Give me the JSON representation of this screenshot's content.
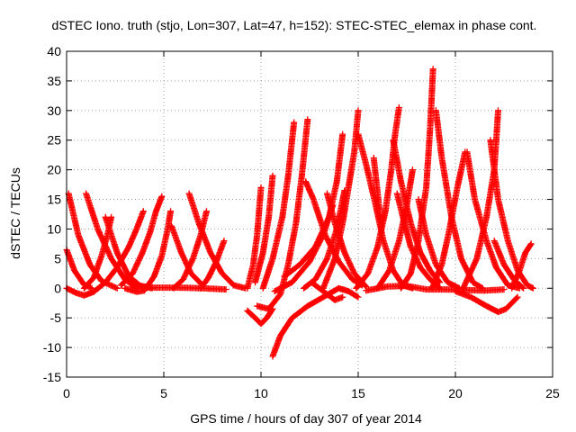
{
  "chart_data": {
    "type": "scatter",
    "title": "dSTEC Iono. truth (stjo, Lon=307, Lat=47, h=152): STEC-STEC_elemax in phase cont.",
    "xlabel": "GPS time / hours of day 307 of year 2014",
    "ylabel": "dSTEC  / TECUs",
    "xlim": [
      0,
      25
    ],
    "ylim": [
      -15,
      40
    ],
    "xticks": [
      "0",
      "5",
      "10",
      "15",
      "20",
      "25"
    ],
    "yticks": [
      "-15",
      "-10",
      "-5",
      "0",
      "5",
      "10",
      "15",
      "20",
      "25",
      "30",
      "35",
      "40"
    ],
    "grid": true,
    "marker": "plus",
    "series_color": "#ff0000",
    "arcs": [
      [
        [
          0.0,
          6.5
        ],
        [
          0.4,
          3.0
        ],
        [
          0.9,
          0.6
        ],
        [
          1.3,
          0.0
        ]
      ],
      [
        [
          0.1,
          16.0
        ],
        [
          0.6,
          9.0
        ],
        [
          1.2,
          4.0
        ],
        [
          1.8,
          1.2
        ],
        [
          2.6,
          0.0
        ]
      ],
      [
        [
          0.0,
          0.0
        ],
        [
          0.5,
          -0.8
        ],
        [
          0.9,
          -1.2
        ],
        [
          1.4,
          -0.6
        ],
        [
          2.0,
          1.0
        ],
        [
          2.6,
          3.5
        ],
        [
          3.2,
          7.0
        ],
        [
          3.6,
          10.0
        ],
        [
          3.95,
          13.0
        ]
      ],
      [
        [
          1.0,
          16.0
        ],
        [
          1.6,
          10.0
        ],
        [
          2.3,
          5.0
        ],
        [
          3.0,
          1.5
        ],
        [
          3.6,
          0.0
        ]
      ],
      [
        [
          0.9,
          0.0
        ],
        [
          1.4,
          1.8
        ],
        [
          1.8,
          5.5
        ],
        [
          2.1,
          9.0
        ],
        [
          2.3,
          12.0
        ]
      ],
      [
        [
          2.0,
          12.0
        ],
        [
          2.6,
          6.0
        ],
        [
          3.2,
          2.0
        ],
        [
          3.8,
          0.4
        ],
        [
          4.4,
          0.0
        ]
      ],
      [
        [
          3.0,
          0.0
        ],
        [
          3.6,
          -0.6
        ],
        [
          4.0,
          -0.4
        ],
        [
          4.5,
          2.0
        ],
        [
          4.9,
          5.5
        ],
        [
          5.2,
          10.0
        ],
        [
          5.35,
          13.0
        ]
      ],
      [
        [
          2.8,
          0.5
        ],
        [
          3.4,
          2.5
        ],
        [
          3.9,
          6.0
        ],
        [
          4.3,
          9.5
        ],
        [
          4.6,
          13.0
        ],
        [
          4.9,
          15.5
        ]
      ],
      [
        [
          3.4,
          0.5
        ],
        [
          4.5,
          0.1
        ],
        [
          5.8,
          0.1
        ],
        [
          7.0,
          0.0
        ],
        [
          8.2,
          -0.2
        ]
      ],
      [
        [
          6.3,
          16.0
        ],
        [
          6.8,
          11.0
        ],
        [
          7.4,
          6.0
        ],
        [
          8.0,
          2.5
        ],
        [
          8.6,
          0.5
        ],
        [
          9.2,
          0.0
        ]
      ],
      [
        [
          5.5,
          0.0
        ],
        [
          6.0,
          1.5
        ],
        [
          6.5,
          5.0
        ],
        [
          6.9,
          9.0
        ],
        [
          7.2,
          13.0
        ]
      ],
      [
        [
          6.9,
          0.0
        ],
        [
          7.3,
          1.8
        ],
        [
          7.7,
          4.5
        ],
        [
          8.1,
          8.0
        ]
      ],
      [
        [
          5.4,
          10.5
        ],
        [
          5.9,
          6.0
        ],
        [
          6.4,
          2.5
        ],
        [
          7.0,
          0.5
        ]
      ],
      [
        [
          9.3,
          -3.8
        ],
        [
          9.7,
          -5.0
        ],
        [
          10.0,
          -6.0
        ],
        [
          10.3,
          -5.0
        ],
        [
          10.6,
          -3.5
        ]
      ],
      [
        [
          9.3,
          0.0
        ],
        [
          9.6,
          4.0
        ],
        [
          9.8,
          9.0
        ],
        [
          10.0,
          17.0
        ]
      ],
      [
        [
          9.7,
          1.0
        ],
        [
          10.1,
          6.0
        ],
        [
          10.4,
          12.0
        ],
        [
          10.6,
          19.0
        ]
      ],
      [
        [
          9.8,
          -3.0
        ],
        [
          10.4,
          -3.5
        ],
        [
          11.0,
          -1.0
        ],
        [
          11.4,
          4.0
        ],
        [
          11.8,
          11.0
        ],
        [
          12.1,
          19.0
        ],
        [
          12.4,
          28.5
        ]
      ],
      [
        [
          10.1,
          0.0
        ],
        [
          10.6,
          5.0
        ],
        [
          11.1,
          12.0
        ],
        [
          11.4,
          19.0
        ],
        [
          11.7,
          28.0
        ]
      ],
      [
        [
          10.6,
          -11.5
        ],
        [
          11.0,
          -8.0
        ],
        [
          11.6,
          -5.0
        ],
        [
          12.4,
          -3.0
        ],
        [
          13.2,
          -1.5
        ],
        [
          14.0,
          0.0
        ],
        [
          14.5,
          -0.5
        ],
        [
          15.0,
          -1.5
        ]
      ],
      [
        [
          10.7,
          -0.5
        ],
        [
          11.6,
          1.0
        ],
        [
          12.5,
          4.5
        ],
        [
          13.2,
          9.0
        ],
        [
          13.7,
          14.0
        ]
      ],
      [
        [
          11.2,
          2.0
        ],
        [
          12.0,
          4.0
        ],
        [
          12.8,
          7.0
        ],
        [
          13.5,
          12.0
        ],
        [
          13.9,
          18.0
        ],
        [
          14.2,
          26.0
        ]
      ],
      [
        [
          12.3,
          18.0
        ],
        [
          12.7,
          15.0
        ],
        [
          13.3,
          9.0
        ],
        [
          14.0,
          4.5
        ],
        [
          14.7,
          1.5
        ],
        [
          15.2,
          0.5
        ]
      ],
      [
        [
          13.2,
          0.0
        ],
        [
          13.8,
          5.0
        ],
        [
          14.2,
          11.0
        ],
        [
          14.5,
          17.0
        ],
        [
          14.8,
          23.0
        ],
        [
          15.0,
          30.0
        ]
      ],
      [
        [
          12.2,
          0.0
        ],
        [
          12.8,
          1.5
        ],
        [
          13.4,
          5.0
        ],
        [
          13.9,
          10.0
        ],
        [
          14.3,
          16.5
        ]
      ],
      [
        [
          13.4,
          16.0
        ],
        [
          13.8,
          11.0
        ],
        [
          14.3,
          6.0
        ],
        [
          14.8,
          2.5
        ],
        [
          15.4,
          0.3
        ]
      ],
      [
        [
          12.6,
          1.0
        ],
        [
          13.2,
          -0.5
        ],
        [
          13.8,
          -2.0
        ],
        [
          14.2,
          -1.5
        ]
      ],
      [
        [
          15.0,
          26.0
        ],
        [
          15.4,
          21.0
        ],
        [
          15.9,
          14.0
        ],
        [
          16.3,
          8.0
        ],
        [
          16.8,
          3.0
        ],
        [
          17.3,
          0.5
        ],
        [
          17.8,
          0.0
        ]
      ],
      [
        [
          15.8,
          22.0
        ],
        [
          16.0,
          16.0
        ],
        [
          16.2,
          10.0
        ]
      ],
      [
        [
          14.9,
          0.0
        ],
        [
          15.5,
          2.5
        ],
        [
          16.0,
          7.0
        ],
        [
          16.4,
          13.0
        ],
        [
          16.7,
          20.0
        ],
        [
          16.9,
          26.0
        ],
        [
          17.1,
          30.5
        ]
      ],
      [
        [
          16.8,
          25.0
        ],
        [
          17.2,
          18.0
        ],
        [
          17.7,
          11.0
        ],
        [
          18.2,
          6.0
        ],
        [
          18.7,
          3.0
        ],
        [
          19.2,
          1.0
        ]
      ],
      [
        [
          15.4,
          -0.4
        ],
        [
          16.5,
          0.3
        ],
        [
          17.5,
          0.4
        ],
        [
          18.5,
          -0.2
        ],
        [
          19.5,
          -0.2
        ],
        [
          20.5,
          -0.3
        ],
        [
          21.5,
          -0.4
        ],
        [
          22.5,
          -0.2
        ]
      ],
      [
        [
          17.2,
          0.0
        ],
        [
          17.7,
          2.5
        ],
        [
          18.1,
          8.0
        ],
        [
          18.5,
          17.0
        ],
        [
          18.7,
          27.0
        ],
        [
          18.85,
          37.0
        ]
      ],
      [
        [
          19.0,
          30.0
        ],
        [
          19.3,
          22.0
        ],
        [
          19.8,
          12.0
        ],
        [
          20.3,
          5.0
        ],
        [
          20.9,
          1.0
        ],
        [
          21.4,
          0.0
        ]
      ],
      [
        [
          18.1,
          15.0
        ],
        [
          18.5,
          9.0
        ],
        [
          19.0,
          4.0
        ],
        [
          19.6,
          1.0
        ],
        [
          20.2,
          0.0
        ]
      ],
      [
        [
          18.8,
          0.0
        ],
        [
          19.3,
          4.0
        ],
        [
          19.7,
          10.0
        ],
        [
          20.1,
          17.0
        ],
        [
          20.5,
          23.0
        ]
      ],
      [
        [
          20.6,
          23.0
        ],
        [
          21.0,
          15.0
        ],
        [
          21.6,
          8.0
        ],
        [
          22.1,
          3.5
        ],
        [
          22.7,
          0.5
        ],
        [
          23.3,
          0.0
        ]
      ],
      [
        [
          21.8,
          25.0
        ],
        [
          22.2,
          15.0
        ],
        [
          22.7,
          8.0
        ],
        [
          23.2,
          3.0
        ],
        [
          23.7,
          0.5
        ],
        [
          24.0,
          0.0
        ]
      ],
      [
        [
          20.4,
          0.0
        ],
        [
          21.1,
          5.0
        ],
        [
          21.6,
          12.0
        ],
        [
          22.0,
          20.0
        ],
        [
          22.2,
          30.0
        ]
      ],
      [
        [
          22.0,
          8.0
        ],
        [
          22.5,
          4.0
        ],
        [
          23.0,
          1.5
        ],
        [
          23.5,
          0.0
        ]
      ],
      [
        [
          22.9,
          0.0
        ],
        [
          23.3,
          3.0
        ],
        [
          23.6,
          6.0
        ],
        [
          23.9,
          7.5
        ]
      ],
      [
        [
          20.0,
          -0.5
        ],
        [
          20.8,
          -1.5
        ],
        [
          21.6,
          -3.0
        ],
        [
          22.2,
          -4.0
        ],
        [
          22.6,
          -3.5
        ],
        [
          23.2,
          -1.5
        ]
      ],
      [
        [
          17.0,
          16.0
        ],
        [
          17.3,
          12.0
        ],
        [
          17.7,
          7.0
        ],
        [
          18.2,
          3.5
        ],
        [
          18.7,
          1.5
        ],
        [
          19.2,
          0.0
        ]
      ],
      [
        [
          16.0,
          0.0
        ],
        [
          16.6,
          3.0
        ],
        [
          17.1,
          8.0
        ],
        [
          17.5,
          14.0
        ],
        [
          17.8,
          20.0
        ]
      ]
    ]
  }
}
